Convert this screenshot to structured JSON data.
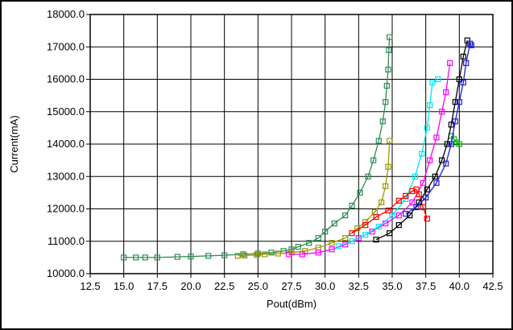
{
  "chart_data": {
    "type": "line",
    "title": "",
    "xlabel": "Pout(dBm)",
    "ylabel": "Current(mA)",
    "xlim": [
      12.5,
      42.5
    ],
    "ylim": [
      10000,
      18000
    ],
    "grid": true,
    "x_ticks": [
      "12.5",
      "15.0",
      "17.5",
      "20.0",
      "22.5",
      "25.0",
      "27.5",
      "30.0",
      "32.5",
      "35.0",
      "37.5",
      "40.0",
      "42.5"
    ],
    "y_ticks": [
      "10000.0",
      "11000.0",
      "12000.0",
      "13000.0",
      "14000.0",
      "15000.0",
      "16000.0",
      "17000.0",
      "18000.0"
    ],
    "series": [
      {
        "color": "#2e8b57",
        "points": [
          [
            15.0,
            10500
          ],
          [
            15.9,
            10500
          ],
          [
            16.6,
            10500
          ],
          [
            17.5,
            10500
          ],
          [
            19.0,
            10520
          ],
          [
            20.0,
            10530
          ],
          [
            21.3,
            10550
          ],
          [
            22.5,
            10570
          ],
          [
            23.9,
            10600
          ],
          [
            25.0,
            10620
          ],
          [
            26.0,
            10650
          ],
          [
            26.9,
            10700
          ],
          [
            27.5,
            10750
          ],
          [
            28.0,
            10830
          ],
          [
            28.8,
            10950
          ],
          [
            29.5,
            11100
          ],
          [
            30.0,
            11300
          ],
          [
            30.7,
            11550
          ],
          [
            31.5,
            11800
          ],
          [
            32.0,
            12100
          ],
          [
            32.6,
            12500
          ],
          [
            33.2,
            13000
          ],
          [
            33.6,
            13500
          ],
          [
            34.0,
            14100
          ],
          [
            34.3,
            14700
          ],
          [
            34.5,
            15300
          ],
          [
            34.6,
            15800
          ],
          [
            34.7,
            16300
          ],
          [
            34.75,
            16900
          ],
          [
            34.8,
            17300
          ]
        ]
      },
      {
        "color": "#999900",
        "points": [
          [
            23.5,
            10550
          ],
          [
            24.0,
            10560
          ],
          [
            24.9,
            10580
          ],
          [
            25.5,
            10600
          ],
          [
            26.5,
            10620
          ],
          [
            27.5,
            10650
          ],
          [
            28.5,
            10700
          ],
          [
            29.5,
            10800
          ],
          [
            30.5,
            10950
          ],
          [
            31.5,
            11100
          ],
          [
            32.4,
            11400
          ],
          [
            33.0,
            11600
          ],
          [
            33.7,
            11900
          ],
          [
            34.2,
            12200
          ],
          [
            34.5,
            12700
          ],
          [
            34.7,
            13300
          ],
          [
            34.8,
            14100
          ]
        ]
      },
      {
        "color": "#ff00ff",
        "points": [
          [
            27.3,
            10600
          ],
          [
            28.3,
            10600
          ],
          [
            29.5,
            10650
          ],
          [
            30.5,
            10750
          ],
          [
            31.5,
            10900
          ],
          [
            32.5,
            11100
          ],
          [
            33.5,
            11300
          ],
          [
            34.5,
            11550
          ],
          [
            35.5,
            11800
          ],
          [
            36.5,
            12200
          ],
          [
            37.3,
            12800
          ],
          [
            37.8,
            13500
          ],
          [
            38.3,
            14200
          ],
          [
            38.7,
            15000
          ],
          [
            39.0,
            15600
          ],
          [
            39.3,
            16500
          ]
        ]
      },
      {
        "color": "#00e5ee",
        "points": [
          [
            31.0,
            10850
          ],
          [
            32.0,
            11000
          ],
          [
            33.0,
            11200
          ],
          [
            34.0,
            11450
          ],
          [
            35.0,
            11800
          ],
          [
            36.0,
            12300
          ],
          [
            36.7,
            13000
          ],
          [
            37.2,
            13700
          ],
          [
            37.6,
            14500
          ],
          [
            37.8,
            15200
          ],
          [
            38.0,
            15900
          ],
          [
            38.4,
            16000
          ]
        ]
      },
      {
        "color": "#ff0000",
        "points": [
          [
            32.0,
            11250
          ],
          [
            33.0,
            11500
          ],
          [
            33.8,
            11750
          ],
          [
            34.7,
            11950
          ],
          [
            35.5,
            12250
          ],
          [
            36.0,
            12400
          ],
          [
            36.5,
            12550
          ],
          [
            36.8,
            12600
          ],
          [
            37.0,
            12450
          ],
          [
            37.3,
            12050
          ],
          [
            37.6,
            11700
          ]
        ]
      },
      {
        "color": "#00bb00",
        "points": [
          [
            39.4,
            14250
          ],
          [
            39.6,
            14150
          ],
          [
            39.8,
            14050
          ],
          [
            40.0,
            14000
          ]
        ]
      },
      {
        "color": "#000000",
        "points": [
          [
            33.8,
            11050
          ],
          [
            34.8,
            11250
          ],
          [
            35.5,
            11500
          ],
          [
            36.3,
            11800
          ],
          [
            37.0,
            12200
          ],
          [
            37.6,
            12600
          ],
          [
            38.2,
            13000
          ],
          [
            38.7,
            13500
          ],
          [
            39.1,
            14000
          ],
          [
            39.4,
            14600
          ],
          [
            39.7,
            15300
          ],
          [
            40.0,
            16000
          ],
          [
            40.3,
            16700
          ],
          [
            40.6,
            17200
          ]
        ]
      },
      {
        "color": "#1c1cd6",
        "points": [
          [
            36.0,
            11850
          ],
          [
            36.8,
            12050
          ],
          [
            37.5,
            12350
          ],
          [
            38.3,
            12800
          ],
          [
            39.0,
            13400
          ],
          [
            39.4,
            14000
          ],
          [
            39.7,
            14700
          ],
          [
            40.0,
            15300
          ],
          [
            40.3,
            15900
          ],
          [
            40.5,
            16500
          ],
          [
            40.8,
            17100
          ],
          [
            40.9,
            17050
          ]
        ]
      }
    ]
  }
}
